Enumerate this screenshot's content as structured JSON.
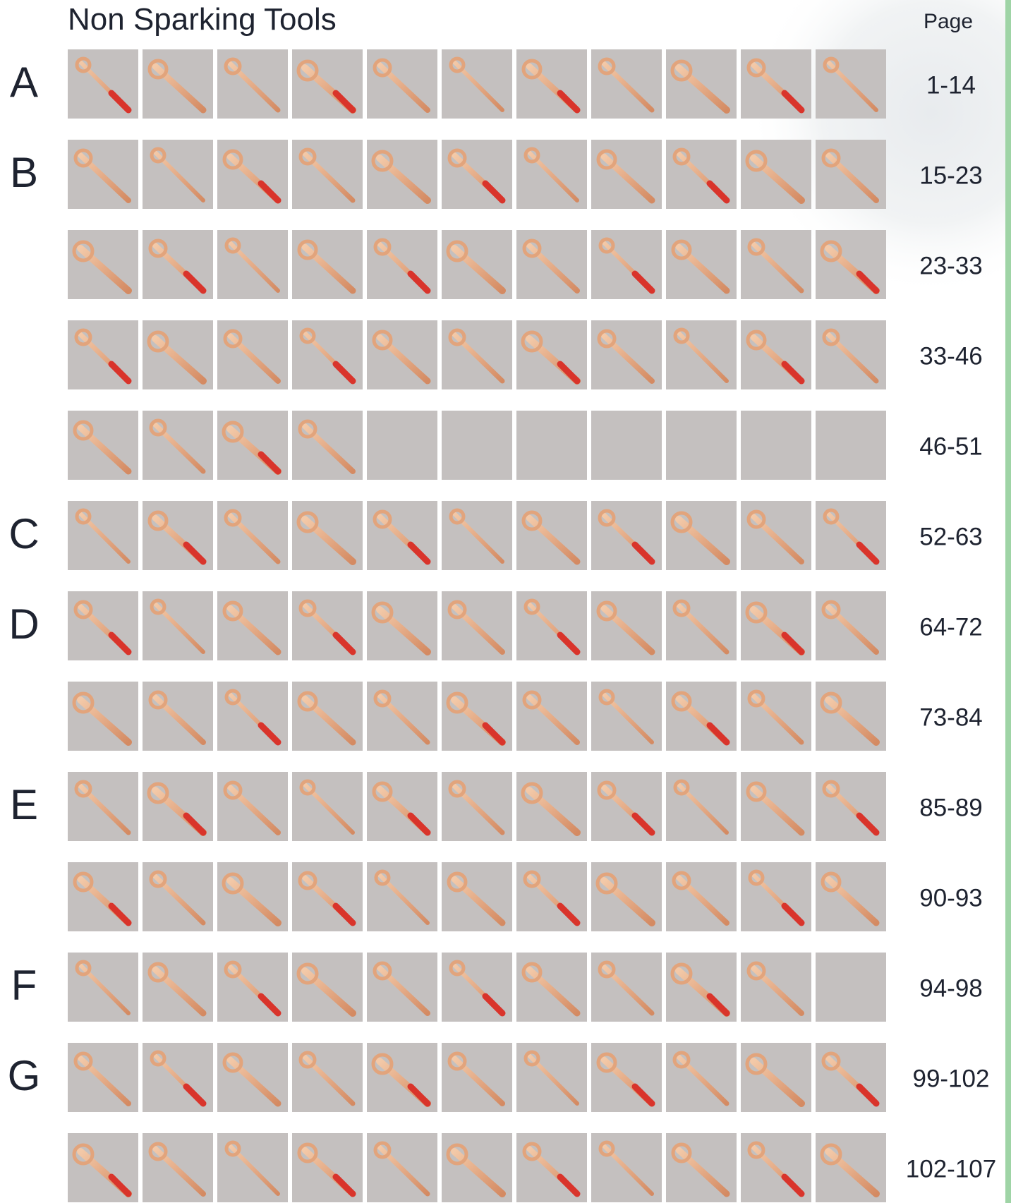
{
  "header": {
    "title": "Non Sparking Tools",
    "page_label": "Page"
  },
  "rows": [
    {
      "section": "A",
      "pages": "1-14"
    },
    {
      "section": "B",
      "pages": "15-23"
    },
    {
      "pages": "23-33"
    },
    {
      "pages": "33-46"
    },
    {
      "pages": "46-51"
    },
    {
      "section": "C",
      "pages": "52-63"
    },
    {
      "section": "D",
      "pages": "64-72"
    },
    {
      "pages": "73-84"
    },
    {
      "section": "E",
      "pages": "85-89"
    },
    {
      "pages": "90-93"
    },
    {
      "section": "F",
      "pages": "94-98"
    },
    {
      "section": "G",
      "pages": "99-102"
    },
    {
      "pages": "102-107"
    }
  ]
}
